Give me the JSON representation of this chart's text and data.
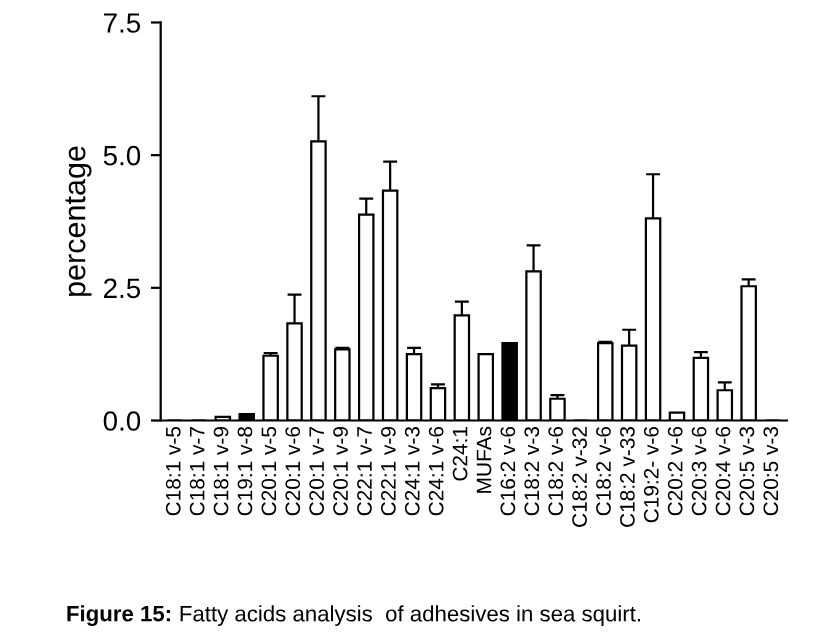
{
  "chart_data": {
    "type": "bar",
    "ylabel": "percentage",
    "categories": [
      "C18:1 v-5",
      "C18:1 v-7",
      "C18:1 v-9",
      "C19:1 v-8",
      "C20:1 v-5",
      "C20:1 v-6",
      "C20:1 v-7",
      "C20:1 v-9",
      "C22:1 v-7",
      "C22:1 v-9",
      "C24:1 v-3",
      "C24:1 v-6",
      "C24:1",
      "MUFAs",
      "C16:2 v-6",
      "C18:2 v-3",
      "C18:2 v-6",
      "C18:2 v-32",
      "C18:2 v-6",
      "C18:2 v-33",
      "C19:2- v-6",
      "C20:2 v-6",
      "C20:3 v-6",
      "C20:4 v-6",
      "C20:5 v-3",
      "C20:5 v-3"
    ],
    "values": [
      0,
      0,
      0.07,
      0.12,
      1.22,
      1.83,
      5.26,
      1.34,
      3.88,
      4.33,
      1.25,
      0.61,
      1.98,
      1.25,
      1.46,
      2.81,
      0.41,
      0,
      1.46,
      1.41,
      3.81,
      0.15,
      1.18,
      0.57,
      2.53,
      0
    ],
    "errors": [
      null,
      null,
      null,
      null,
      0.05,
      0.54,
      0.85,
      0.03,
      0.3,
      0.55,
      0.12,
      0.07,
      0.26,
      null,
      null,
      0.49,
      0.07,
      null,
      0.02,
      0.3,
      0.83,
      null,
      0.11,
      0.15,
      0.13,
      null
    ],
    "colors": [
      "#ffffff",
      "#ffffff",
      "#ffffff",
      "#000000",
      "#ffffff",
      "#ffffff",
      "#ffffff",
      "#ffffff",
      "#ffffff",
      "#ffffff",
      "#ffffff",
      "#ffffff",
      "#ffffff",
      "#ffffff",
      "#000000",
      "#ffffff",
      "#ffffff",
      "#ffffff",
      "#ffffff",
      "#ffffff",
      "#ffffff",
      "#ffffff",
      "#ffffff",
      "#ffffff",
      "#ffffff",
      "#ffffff"
    ],
    "ylim": [
      0,
      7.5
    ],
    "yticks": [
      {
        "value": 0,
        "label": "0.0"
      },
      {
        "value": 2.5,
        "label": "2.5"
      },
      {
        "value": 5,
        "label": "5.0"
      },
      {
        "value": 7.5,
        "label": "7.5"
      }
    ],
    "grid": false,
    "annotations": [
      "Figure 15: Fatty acids analysis  of adhesives in sea squirt."
    ]
  }
}
